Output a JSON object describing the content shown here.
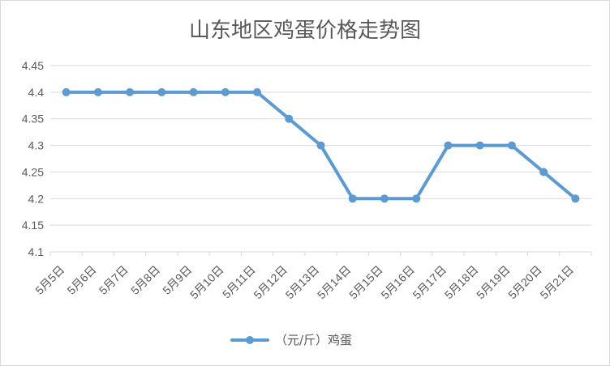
{
  "chart_data": {
    "type": "line",
    "title": "山东地区鸡蛋价格走势图",
    "categories": [
      "5月5日",
      "5月6日",
      "5月7日",
      "5月8日",
      "5月9日",
      "5月10日",
      "5月11日",
      "5月12日",
      "5月13日",
      "5月14日",
      "5月15日",
      "5月16日",
      "5月17日",
      "5月18日",
      "5月19日",
      "5月20日",
      "5月21日"
    ],
    "series": [
      {
        "name": "（元/斤）鸡蛋",
        "values": [
          4.4,
          4.4,
          4.4,
          4.4,
          4.4,
          4.4,
          4.4,
          4.35,
          4.3,
          4.2,
          4.2,
          4.2,
          4.3,
          4.3,
          4.3,
          4.25,
          4.2
        ],
        "color": "#5b9bd5"
      }
    ],
    "yticks": [
      "4.1",
      "4.15",
      "4.2",
      "4.25",
      "4.3",
      "4.35",
      "4.4",
      "4.45"
    ],
    "ylim": [
      4.1,
      4.45
    ],
    "grid": true,
    "legend_position": "bottom"
  }
}
